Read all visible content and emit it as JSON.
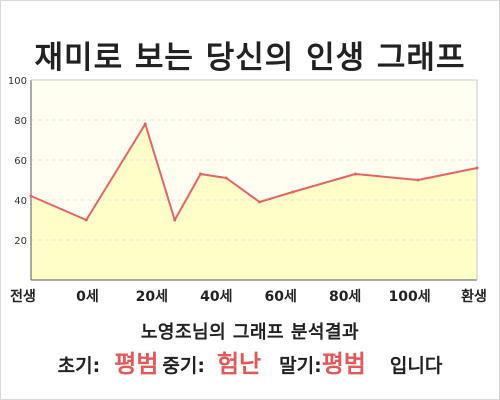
{
  "title": "재미로 보는 당신의 인생 그래프",
  "summary": "노영조님의 그래프 분석결과",
  "result": {
    "early_label": "초기:",
    "early_value": "평범",
    "mid_label": "중기:",
    "mid_value": "험난",
    "late_label": "말기:",
    "late_value": "평범",
    "ending": "입니다"
  },
  "colors": {
    "line": "#e06666",
    "fill": "#fffdc8",
    "result_value": "#e15a5a"
  },
  "chart_data": {
    "type": "area",
    "x_tick_labels": [
      "전생",
      "0세",
      "20세",
      "40세",
      "60세",
      "80세",
      "100세",
      "환생"
    ],
    "x": [
      -15,
      0,
      16,
      24,
      31,
      38,
      47,
      56,
      73,
      90,
      106
    ],
    "y": [
      42,
      30,
      78,
      30,
      53,
      51,
      39,
      44,
      53,
      50,
      56
    ],
    "ylim": [
      0,
      100
    ],
    "y_ticks": [
      20,
      40,
      60,
      80,
      100
    ],
    "grid": true,
    "legend": "none"
  }
}
